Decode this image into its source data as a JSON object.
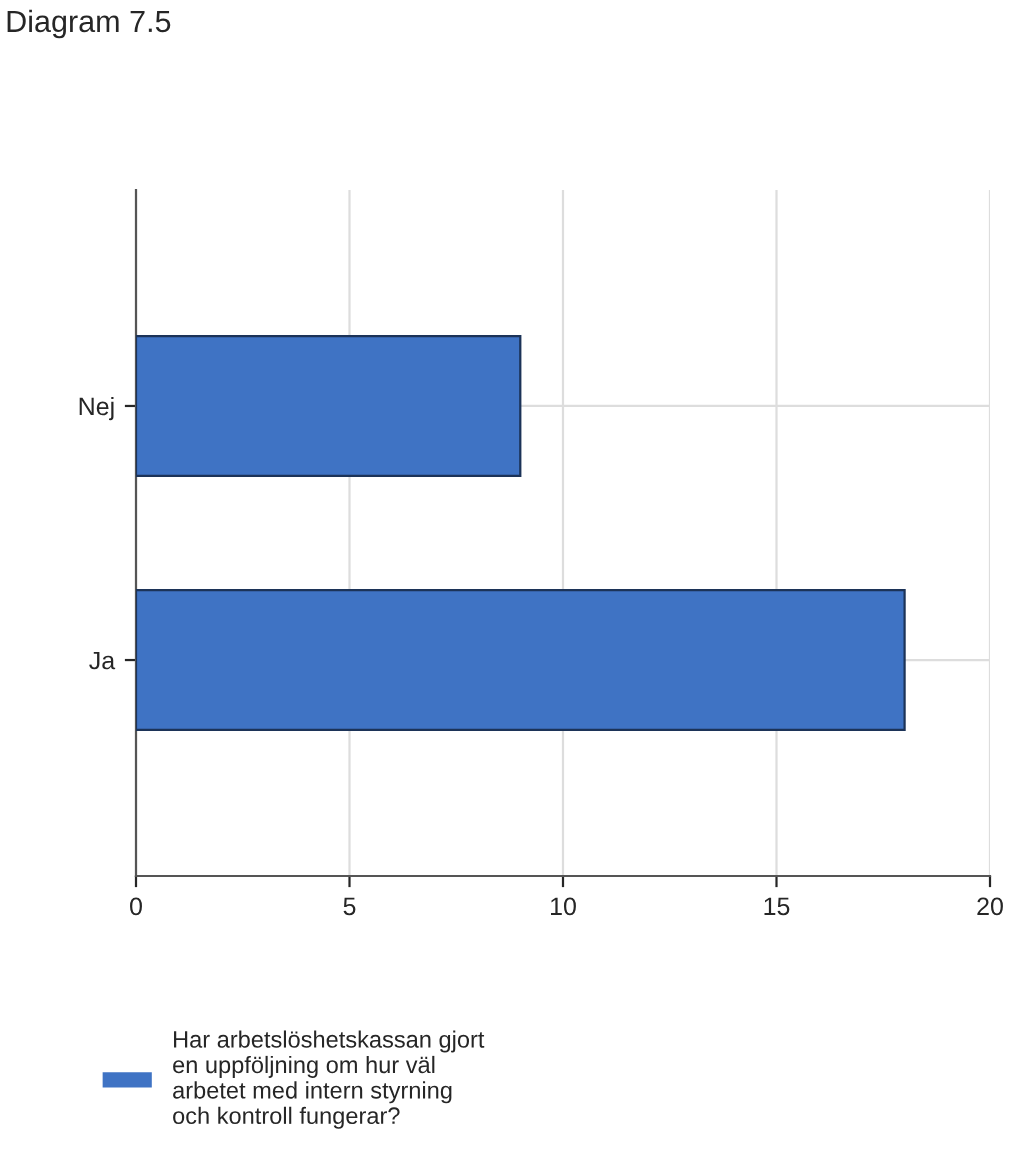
{
  "chart_data": {
    "type": "bar",
    "orientation": "horizontal",
    "title": "Diagram 7.5",
    "categories": [
      "Nej",
      "Ja"
    ],
    "series": [
      {
        "name": "Har arbetslöshetskassan gjort en uppföljning om hur väl arbetet med intern styrning och kontroll fungerar?",
        "color": "#3f73c4",
        "values": [
          9,
          18
        ]
      }
    ],
    "xlim": [
      0,
      20
    ],
    "xticks": [
      0,
      5,
      10,
      15,
      20
    ],
    "grid": true,
    "legend": "bottom"
  }
}
